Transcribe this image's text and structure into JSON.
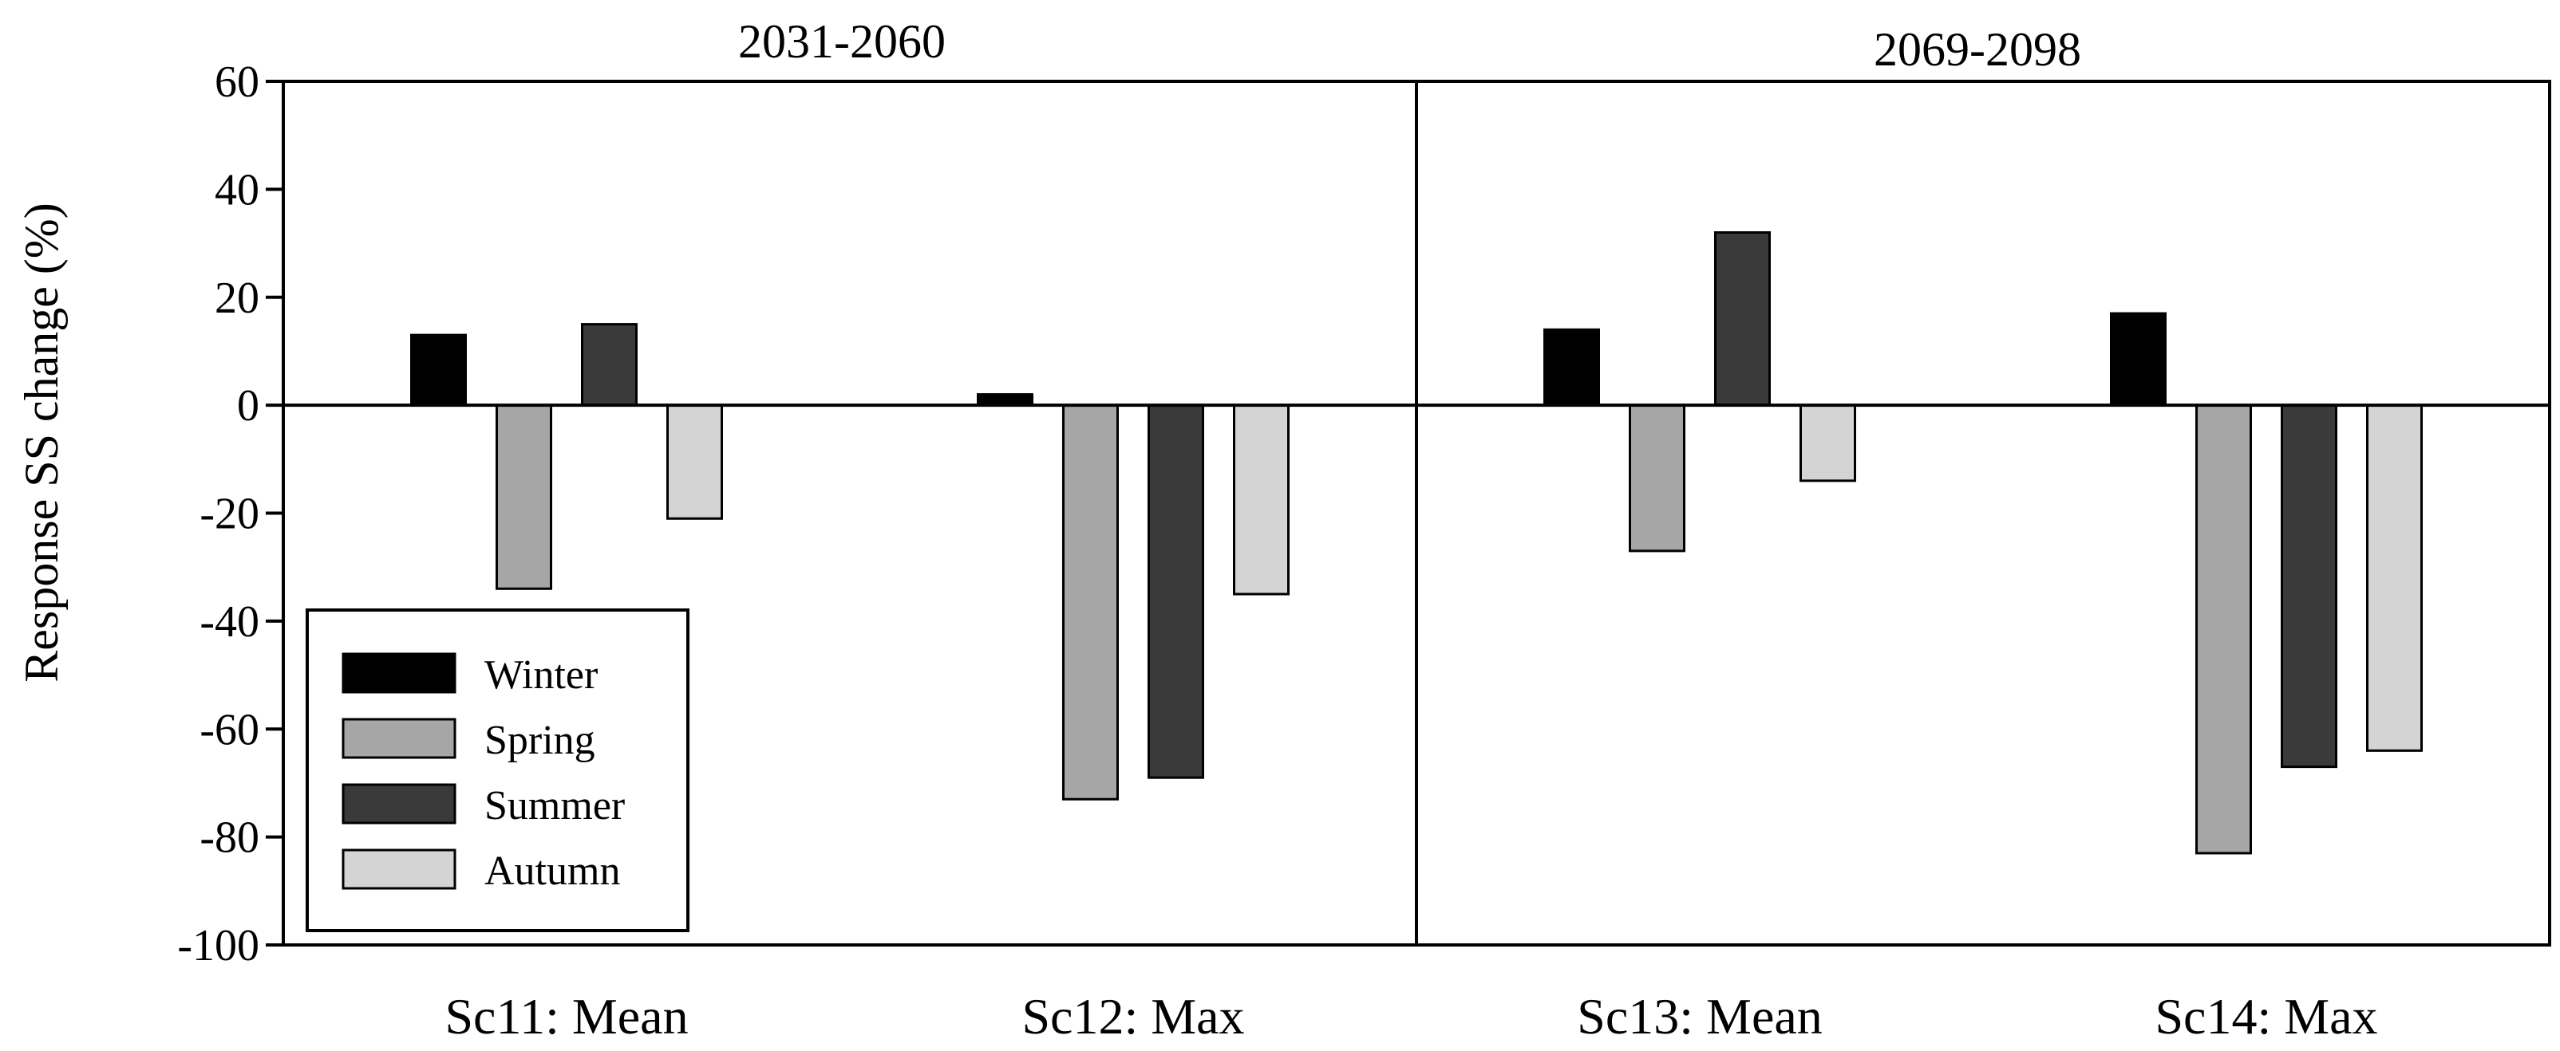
{
  "chart_data": {
    "type": "bar",
    "panels": [
      "2031-2060",
      "2069-2098"
    ],
    "categories": [
      "Sc11: Mean",
      "Sc12: Max",
      "Sc13: Mean",
      "Sc14: Max"
    ],
    "series": [
      {
        "name": "Winter",
        "color": "#000000",
        "values": [
          13,
          2,
          14,
          17
        ]
      },
      {
        "name": "Spring",
        "color": "#a6a6a6",
        "values": [
          -34,
          -73,
          -27,
          -83
        ]
      },
      {
        "name": "Summer",
        "color": "#3a3a3a",
        "values": [
          15,
          -69,
          32,
          -67
        ]
      },
      {
        "name": "Autumn",
        "color": "#d4d4d4",
        "values": [
          -21,
          -35,
          -14,
          -64
        ]
      }
    ],
    "ylabel": "Response SS change (%)",
    "ylim": [
      -100,
      60
    ],
    "yticks": [
      60,
      40,
      20,
      0,
      -20,
      -40,
      -60,
      -80,
      -100
    ],
    "legend_position": "bottom-left",
    "grid": false
  }
}
